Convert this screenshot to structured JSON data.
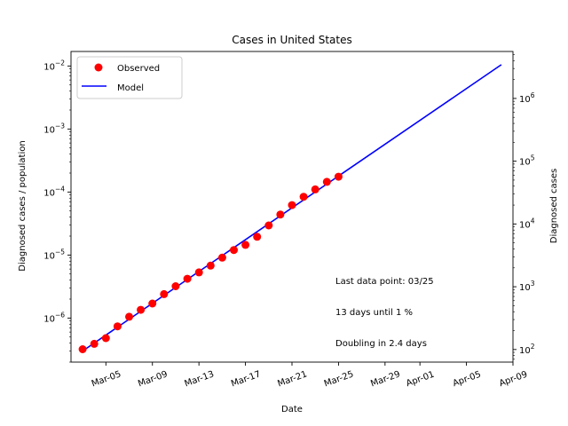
{
  "chart_data": {
    "type": "scatter",
    "title": "Cases in United States",
    "xlabel": "Date",
    "ylabel": "Diagnosed cases / population",
    "ylabel_right": "Diagnosed cases",
    "x_scale": "date",
    "y_scale": "log",
    "y_right_scale": "log",
    "xlim": [
      "2020-03-02",
      "2020-04-09"
    ],
    "ylim": [
      2e-07,
      0.017
    ],
    "y_right_lim": [
      63,
      5600000
    ],
    "x_ticks": [
      {
        "date": "2020-03-05",
        "label": "Mar-05"
      },
      {
        "date": "2020-03-09",
        "label": "Mar-09"
      },
      {
        "date": "2020-03-13",
        "label": "Mar-13"
      },
      {
        "date": "2020-03-17",
        "label": "Mar-17"
      },
      {
        "date": "2020-03-21",
        "label": "Mar-21"
      },
      {
        "date": "2020-03-25",
        "label": "Mar-25"
      },
      {
        "date": "2020-03-29",
        "label": "Mar-29"
      },
      {
        "date": "2020-04-01",
        "label": "Apr-01"
      },
      {
        "date": "2020-04-05",
        "label": "Apr-05"
      },
      {
        "date": "2020-04-09",
        "label": "Apr-09"
      }
    ],
    "y_ticks": [
      {
        "value": 1e-06,
        "base": "10",
        "exp": "−6"
      },
      {
        "value": 1e-05,
        "base": "10",
        "exp": "−5"
      },
      {
        "value": 0.0001,
        "base": "10",
        "exp": "−4"
      },
      {
        "value": 0.001,
        "base": "10",
        "exp": "−3"
      },
      {
        "value": 0.01,
        "base": "10",
        "exp": "−2"
      }
    ],
    "y_right_ticks": [
      {
        "value": 100,
        "base": "10",
        "exp": "2"
      },
      {
        "value": 1000,
        "base": "10",
        "exp": "3"
      },
      {
        "value": 10000,
        "base": "10",
        "exp": "4"
      },
      {
        "value": 100000,
        "base": "10",
        "exp": "5"
      },
      {
        "value": 1000000,
        "base": "10",
        "exp": "6"
      }
    ],
    "legend": {
      "position": "upper-left",
      "entries": [
        {
          "label": "Observed",
          "marker": "circle",
          "color": "#ff0000"
        },
        {
          "label": "Model",
          "marker": "line",
          "color": "#0000ff"
        }
      ]
    },
    "series": [
      {
        "name": "Observed",
        "kind": "markers",
        "color": "#ff0000",
        "points": [
          {
            "x": "2020-03-03",
            "y": 3.2e-07
          },
          {
            "x": "2020-03-04",
            "y": 3.9e-07
          },
          {
            "x": "2020-03-05",
            "y": 4.8e-07
          },
          {
            "x": "2020-03-06",
            "y": 7.4e-07
          },
          {
            "x": "2020-03-07",
            "y": 1.05e-06
          },
          {
            "x": "2020-03-08",
            "y": 1.35e-06
          },
          {
            "x": "2020-03-09",
            "y": 1.7e-06
          },
          {
            "x": "2020-03-10",
            "y": 2.4e-06
          },
          {
            "x": "2020-03-11",
            "y": 3.2e-06
          },
          {
            "x": "2020-03-12",
            "y": 4.2e-06
          },
          {
            "x": "2020-03-13",
            "y": 5.3e-06
          },
          {
            "x": "2020-03-14",
            "y": 6.8e-06
          },
          {
            "x": "2020-03-15",
            "y": 9.1e-06
          },
          {
            "x": "2020-03-16",
            "y": 1.2e-05
          },
          {
            "x": "2020-03-17",
            "y": 1.45e-05
          },
          {
            "x": "2020-03-18",
            "y": 1.95e-05
          },
          {
            "x": "2020-03-19",
            "y": 2.95e-05
          },
          {
            "x": "2020-03-20",
            "y": 4.4e-05
          },
          {
            "x": "2020-03-21",
            "y": 6.2e-05
          },
          {
            "x": "2020-03-22",
            "y": 8.4e-05
          },
          {
            "x": "2020-03-23",
            "y": 0.00011
          },
          {
            "x": "2020-03-24",
            "y": 0.000145
          },
          {
            "x": "2020-03-25",
            "y": 0.000175
          }
        ]
      },
      {
        "name": "Model",
        "kind": "line",
        "color": "#0000ff",
        "points": [
          {
            "x": "2020-03-03",
            "y": 3e-07
          },
          {
            "x": "2020-04-08",
            "y": 0.0105
          }
        ]
      }
    ],
    "annotations": [
      {
        "text": "Last data point: 03/25",
        "position": "lower-right"
      },
      {
        "text": "13 days until 1 %",
        "position": "lower-right"
      },
      {
        "text": "Doubling in 2.4 days",
        "position": "lower-right"
      }
    ]
  }
}
